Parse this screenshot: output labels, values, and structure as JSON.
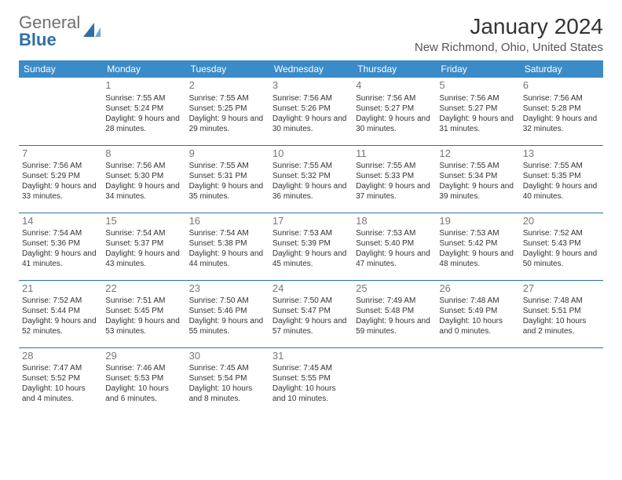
{
  "logo": {
    "text_gray": "General",
    "text_blue": "Blue"
  },
  "title": "January 2024",
  "location": "New Richmond, Ohio, United States",
  "header_bg": "#3b8bc9",
  "divider_color": "#2f6fa8",
  "day_headers": [
    "Sunday",
    "Monday",
    "Tuesday",
    "Wednesday",
    "Thursday",
    "Friday",
    "Saturday"
  ],
  "start_offset": 1,
  "days": [
    {
      "n": "1",
      "sunrise": "7:55 AM",
      "sunset": "5:24 PM",
      "daylight": "9 hours and 28 minutes."
    },
    {
      "n": "2",
      "sunrise": "7:55 AM",
      "sunset": "5:25 PM",
      "daylight": "9 hours and 29 minutes."
    },
    {
      "n": "3",
      "sunrise": "7:56 AM",
      "sunset": "5:26 PM",
      "daylight": "9 hours and 30 minutes."
    },
    {
      "n": "4",
      "sunrise": "7:56 AM",
      "sunset": "5:27 PM",
      "daylight": "9 hours and 30 minutes."
    },
    {
      "n": "5",
      "sunrise": "7:56 AM",
      "sunset": "5:27 PM",
      "daylight": "9 hours and 31 minutes."
    },
    {
      "n": "6",
      "sunrise": "7:56 AM",
      "sunset": "5:28 PM",
      "daylight": "9 hours and 32 minutes."
    },
    {
      "n": "7",
      "sunrise": "7:56 AM",
      "sunset": "5:29 PM",
      "daylight": "9 hours and 33 minutes."
    },
    {
      "n": "8",
      "sunrise": "7:56 AM",
      "sunset": "5:30 PM",
      "daylight": "9 hours and 34 minutes."
    },
    {
      "n": "9",
      "sunrise": "7:55 AM",
      "sunset": "5:31 PM",
      "daylight": "9 hours and 35 minutes."
    },
    {
      "n": "10",
      "sunrise": "7:55 AM",
      "sunset": "5:32 PM",
      "daylight": "9 hours and 36 minutes."
    },
    {
      "n": "11",
      "sunrise": "7:55 AM",
      "sunset": "5:33 PM",
      "daylight": "9 hours and 37 minutes."
    },
    {
      "n": "12",
      "sunrise": "7:55 AM",
      "sunset": "5:34 PM",
      "daylight": "9 hours and 39 minutes."
    },
    {
      "n": "13",
      "sunrise": "7:55 AM",
      "sunset": "5:35 PM",
      "daylight": "9 hours and 40 minutes."
    },
    {
      "n": "14",
      "sunrise": "7:54 AM",
      "sunset": "5:36 PM",
      "daylight": "9 hours and 41 minutes."
    },
    {
      "n": "15",
      "sunrise": "7:54 AM",
      "sunset": "5:37 PM",
      "daylight": "9 hours and 43 minutes."
    },
    {
      "n": "16",
      "sunrise": "7:54 AM",
      "sunset": "5:38 PM",
      "daylight": "9 hours and 44 minutes."
    },
    {
      "n": "17",
      "sunrise": "7:53 AM",
      "sunset": "5:39 PM",
      "daylight": "9 hours and 45 minutes."
    },
    {
      "n": "18",
      "sunrise": "7:53 AM",
      "sunset": "5:40 PM",
      "daylight": "9 hours and 47 minutes."
    },
    {
      "n": "19",
      "sunrise": "7:53 AM",
      "sunset": "5:42 PM",
      "daylight": "9 hours and 48 minutes."
    },
    {
      "n": "20",
      "sunrise": "7:52 AM",
      "sunset": "5:43 PM",
      "daylight": "9 hours and 50 minutes."
    },
    {
      "n": "21",
      "sunrise": "7:52 AM",
      "sunset": "5:44 PM",
      "daylight": "9 hours and 52 minutes."
    },
    {
      "n": "22",
      "sunrise": "7:51 AM",
      "sunset": "5:45 PM",
      "daylight": "9 hours and 53 minutes."
    },
    {
      "n": "23",
      "sunrise": "7:50 AM",
      "sunset": "5:46 PM",
      "daylight": "9 hours and 55 minutes."
    },
    {
      "n": "24",
      "sunrise": "7:50 AM",
      "sunset": "5:47 PM",
      "daylight": "9 hours and 57 minutes."
    },
    {
      "n": "25",
      "sunrise": "7:49 AM",
      "sunset": "5:48 PM",
      "daylight": "9 hours and 59 minutes."
    },
    {
      "n": "26",
      "sunrise": "7:48 AM",
      "sunset": "5:49 PM",
      "daylight": "10 hours and 0 minutes."
    },
    {
      "n": "27",
      "sunrise": "7:48 AM",
      "sunset": "5:51 PM",
      "daylight": "10 hours and 2 minutes."
    },
    {
      "n": "28",
      "sunrise": "7:47 AM",
      "sunset": "5:52 PM",
      "daylight": "10 hours and 4 minutes."
    },
    {
      "n": "29",
      "sunrise": "7:46 AM",
      "sunset": "5:53 PM",
      "daylight": "10 hours and 6 minutes."
    },
    {
      "n": "30",
      "sunrise": "7:45 AM",
      "sunset": "5:54 PM",
      "daylight": "10 hours and 8 minutes."
    },
    {
      "n": "31",
      "sunrise": "7:45 AM",
      "sunset": "5:55 PM",
      "daylight": "10 hours and 10 minutes."
    }
  ],
  "labels": {
    "sunrise": "Sunrise:",
    "sunset": "Sunset:",
    "daylight": "Daylight:"
  }
}
